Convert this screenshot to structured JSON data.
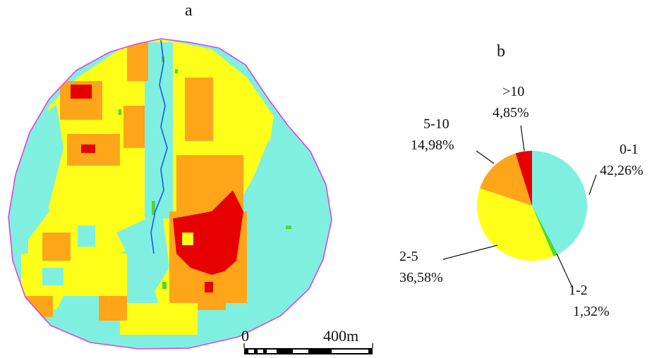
{
  "panels": {
    "a": "a",
    "b": "b"
  },
  "scale_bar": {
    "start_label": "0",
    "end_label": "400m"
  },
  "colors": {
    "cyan": "#7ff0e0",
    "yellow": "#ffff1a",
    "orange": "#ffa51a",
    "red": "#e60000",
    "green": "#4cd934",
    "river": "#1a55ff",
    "boundary": "#e040e0"
  },
  "chart_data": {
    "type": "pie",
    "title": "",
    "slices": [
      {
        "label": "0-1",
        "value": 42.26,
        "value_label": "42,26%",
        "color": "#7ff0e0"
      },
      {
        "label": "1-2",
        "value": 1.32,
        "value_label": "1,32%",
        "color": "#4cd934"
      },
      {
        "label": "2-5",
        "value": 36.58,
        "value_label": "36,58%",
        "color": "#ffff1a"
      },
      {
        "label": "5-10",
        "value": 14.98,
        "value_label": "14,98%",
        "color": "#ffa51a"
      },
      {
        "label": ">10",
        "value": 4.85,
        "value_label": "4,85%",
        "color": "#e60000"
      }
    ],
    "start": "12 o'clock",
    "direction": "clockwise"
  }
}
